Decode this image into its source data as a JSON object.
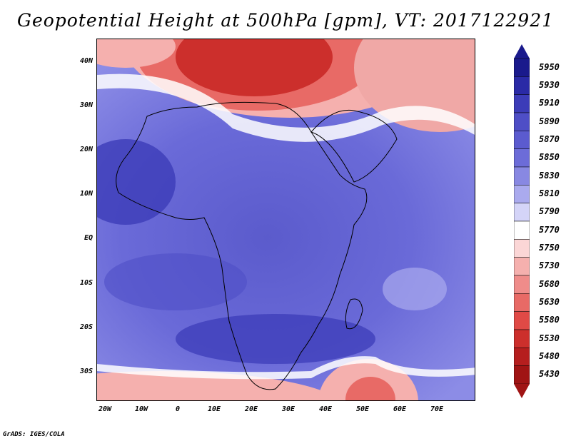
{
  "title": "Geopotential Height at 500hPa [gpm], VT: 2017122921",
  "latitude_labels": [
    "40N",
    "30N",
    "20N",
    "10N",
    "EQ",
    "10S",
    "20S",
    "30S"
  ],
  "longitude_labels": [
    "20W",
    "10W",
    "0",
    "10E",
    "20E",
    "30E",
    "40E",
    "50E",
    "60E",
    "70E"
  ],
  "colorbar": {
    "levels": [
      "5950",
      "5930",
      "5910",
      "5890",
      "5870",
      "5850",
      "5830",
      "5810",
      "5790",
      "5770",
      "5750",
      "5730",
      "5680",
      "5630",
      "5580",
      "5530",
      "5480",
      "5430"
    ],
    "colors": [
      "#1a1a8c",
      "#2a2aa6",
      "#3c3cb8",
      "#4e4ec6",
      "#5b5bcf",
      "#6c6cd8",
      "#8888e2",
      "#aaaaee",
      "#d4d4f8",
      "#ffffff",
      "#fbd6d6",
      "#f5b0ae",
      "#ef8c8a",
      "#e86a66",
      "#e04a46",
      "#cc2f2c",
      "#b51e1e",
      "#a01414"
    ]
  },
  "credit": "GrADS: IGES/COLA",
  "colors": {
    "high": "#3c3cb8",
    "low": "#b51e1e",
    "neutral": "#ffffff"
  }
}
